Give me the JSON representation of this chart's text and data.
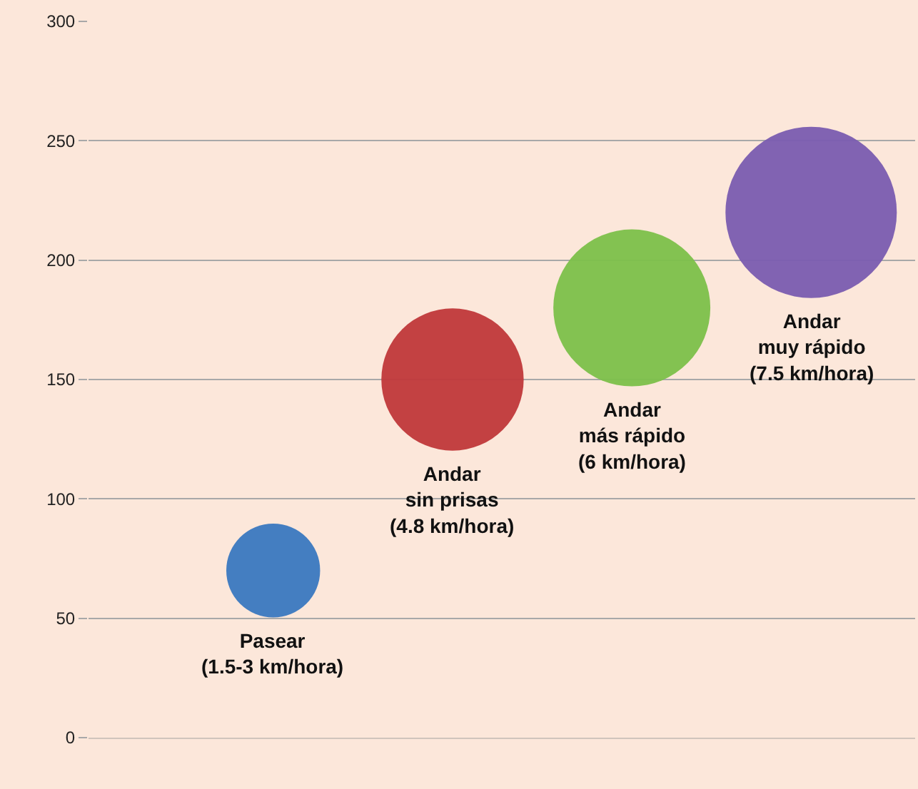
{
  "chart_data": {
    "type": "bubble",
    "categories": [
      null,
      null,
      null,
      null
    ],
    "values": [
      70,
      150,
      180,
      220
    ],
    "sizes": [
      0.3,
      0.69,
      0.84,
      1
    ],
    "colors": [
      "#3a78c0",
      "#c0383a",
      "#7cc04a",
      "#7a5cb0"
    ],
    "ylim": [
      0,
      300
    ],
    "yticks": [
      0,
      50,
      100,
      150,
      200,
      250,
      300
    ],
    "grid": "y",
    "tick_labels": "y",
    "legend": false,
    "annotations": [
      "Pasear\n(1.5-3 km/hora)",
      "Andar\nsin prisas\n(4.8 km/hora)",
      "Andar\nmás rápido\n(6 km/hora)",
      "Andar\nmuy rápido\n(7.5 km/hora)"
    ]
  }
}
